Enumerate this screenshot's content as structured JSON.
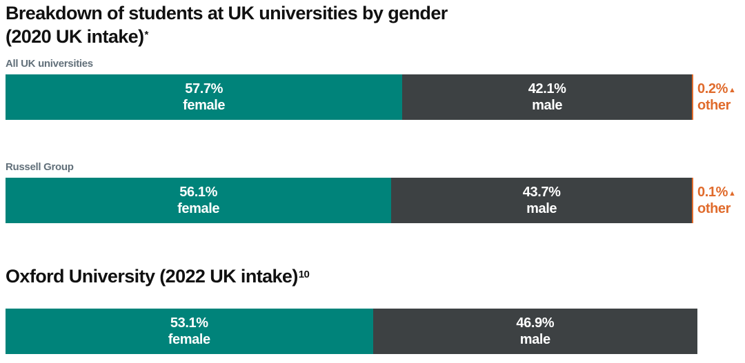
{
  "title_main": "Breakdown of students at UK universities by gender",
  "title_main_line2": "(2020 UK intake)",
  "title_main_marker": "*",
  "title_oxford": "Oxford University (2022 UK intake)",
  "title_oxford_ref": "10",
  "other_marker": "▲",
  "colors": {
    "female": "#00837a",
    "male": "#3d4143",
    "other": "#e06b2c"
  },
  "chart_data": [
    {
      "type": "bar",
      "stacked": true,
      "group_label": "All UK universities",
      "series": [
        {
          "name": "female",
          "value": 57.7,
          "label": "57.7%"
        },
        {
          "name": "male",
          "value": 42.1,
          "label": "42.1%"
        },
        {
          "name": "other",
          "value": 0.2,
          "label": "0.2%"
        }
      ]
    },
    {
      "type": "bar",
      "stacked": true,
      "group_label": "Russell Group",
      "series": [
        {
          "name": "female",
          "value": 56.1,
          "label": "56.1%"
        },
        {
          "name": "male",
          "value": 43.7,
          "label": "43.7%"
        },
        {
          "name": "other",
          "value": 0.1,
          "label": "0.1%"
        }
      ]
    },
    {
      "type": "bar",
      "stacked": true,
      "group_label": "",
      "series": [
        {
          "name": "female",
          "value": 53.1,
          "label": "53.1%"
        },
        {
          "name": "male",
          "value": 46.9,
          "label": "46.9%"
        }
      ]
    }
  ]
}
